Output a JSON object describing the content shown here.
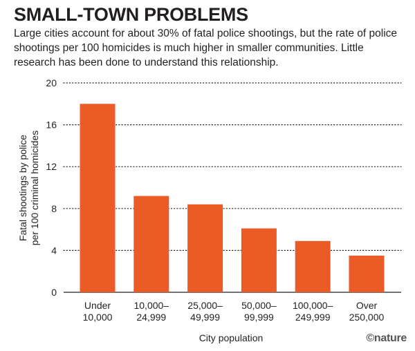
{
  "header": {
    "title": "SMALL-TOWN PROBLEMS",
    "subtitle": "Large cities account for about 30% of fatal police shootings, but the rate of police shootings per 100 homicides is much higher in smaller communities. Little research has been done to understand this relationship."
  },
  "credit": {
    "symbol": "©",
    "brand": "nature"
  },
  "colors": {
    "bar": "#ea5b25",
    "gridline": "#231f20",
    "text": "#231f20"
  },
  "chart_data": {
    "type": "bar",
    "title": "SMALL-TOWN PROBLEMS",
    "xlabel": "City population",
    "ylabel": [
      "Fatal shootings by police",
      "per 100 criminal homicides"
    ],
    "categories": [
      [
        "Under",
        "10,000"
      ],
      [
        "10,000–",
        "24,999"
      ],
      [
        "25,000–",
        "49,999"
      ],
      [
        "50,000–",
        "99,999"
      ],
      [
        "100,000–",
        "249,999"
      ],
      [
        "Over",
        "250,000"
      ]
    ],
    "values": [
      18.0,
      9.2,
      8.4,
      6.1,
      4.9,
      3.5
    ],
    "ylim": [
      0,
      20
    ],
    "yticks": [
      0,
      4,
      8,
      12,
      16,
      20
    ],
    "grid": true,
    "grid_style": "dotted"
  }
}
